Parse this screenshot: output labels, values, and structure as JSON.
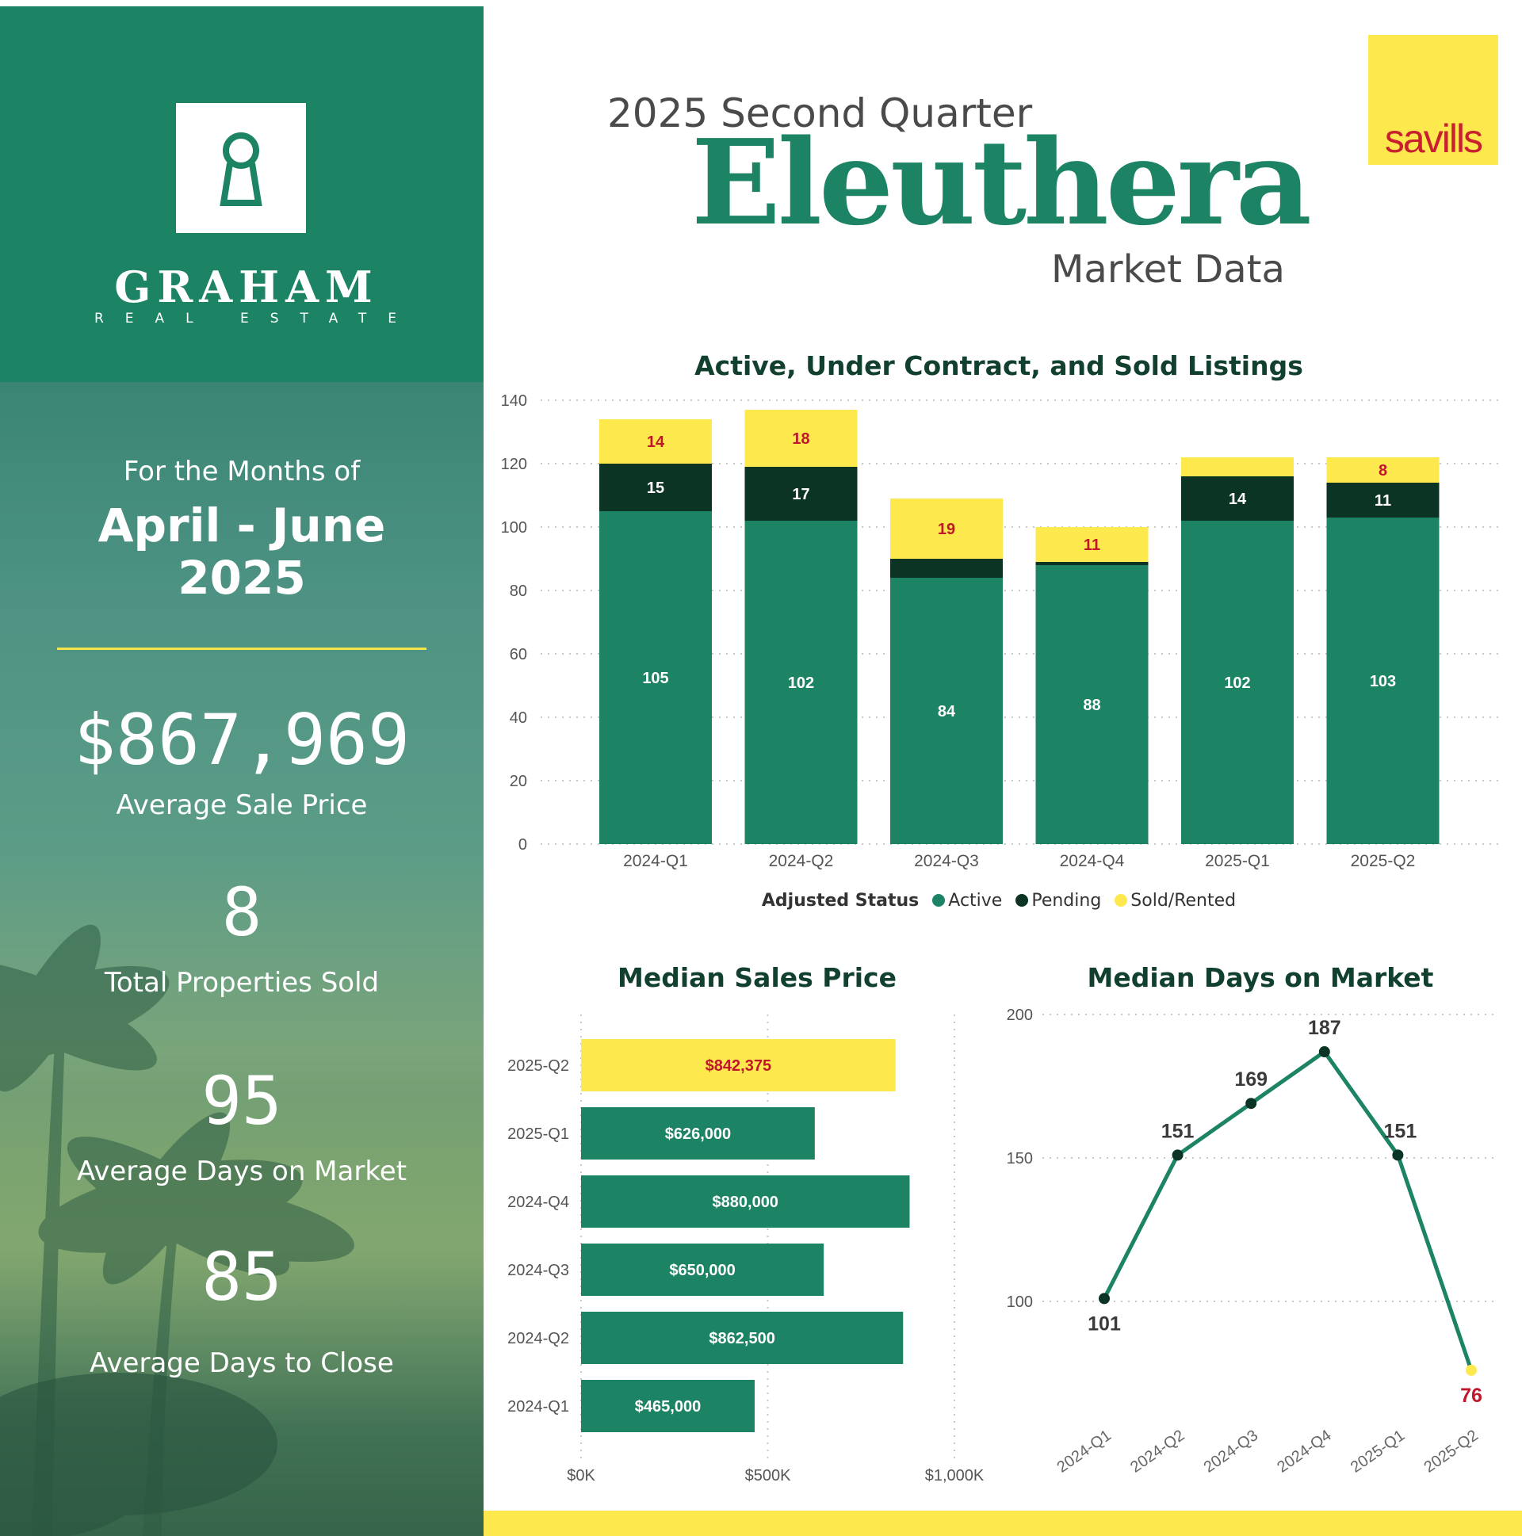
{
  "brand": {
    "name": "GRAHAM",
    "tagline": "REAL ESTATE"
  },
  "header": {
    "subtitle": "2025 Second Quarter",
    "region": "Eleuthera",
    "report_type": "Market Data",
    "partner_logo_text": "savills"
  },
  "summary": {
    "months_label": "For the Months of",
    "months_range": "April - June",
    "year": "2025",
    "avg_sale_price": "$867,969",
    "avg_sale_price_label": "Average Sale Price",
    "total_sold": "8",
    "total_sold_label": "Total Properties Sold",
    "avg_days_market": "95",
    "avg_days_market_label": "Average Days on Market",
    "avg_days_close": "85",
    "avg_days_close_label": "Average Days to Close"
  },
  "legend": {
    "title": "Adjusted Status",
    "items": [
      {
        "label": "Active",
        "color": "#1c8364"
      },
      {
        "label": "Pending",
        "color": "#0b3425"
      },
      {
        "label": "Sold/Rented",
        "color": "#fde84e"
      }
    ]
  },
  "colors": {
    "green": "#1c8364",
    "dark": "#0b3425",
    "yellow": "#fde84e",
    "red_label": "#c0172b"
  },
  "chart_data": [
    {
      "type": "bar",
      "stacked": true,
      "title": "Active, Under Contract, and Sold Listings",
      "categories": [
        "2024-Q1",
        "2024-Q2",
        "2024-Q3",
        "2024-Q4",
        "2025-Q1",
        "2025-Q2"
      ],
      "series": [
        {
          "name": "Active",
          "values": [
            105,
            102,
            84,
            88,
            102,
            103
          ],
          "labels": [
            "105",
            "102",
            "84",
            "88",
            "102",
            "103"
          ]
        },
        {
          "name": "Pending",
          "values": [
            15,
            17,
            6,
            1,
            14,
            11
          ],
          "labels": [
            "15",
            "17",
            "",
            "",
            "14",
            "11"
          ]
        },
        {
          "name": "Sold/Rented",
          "values": [
            14,
            18,
            19,
            11,
            6,
            8
          ],
          "labels": [
            "14",
            "18",
            "19",
            "11",
            "",
            "8"
          ]
        }
      ],
      "ylim": [
        0,
        140
      ],
      "yticks": [
        0,
        20,
        40,
        60,
        80,
        100,
        120,
        140
      ],
      "legend_position": "bottom",
      "grid": true
    },
    {
      "type": "bar",
      "orientation": "horizontal",
      "title": "Median Sales Price",
      "categories": [
        "2025-Q2",
        "2025-Q1",
        "2024-Q4",
        "2024-Q3",
        "2024-Q2",
        "2024-Q1"
      ],
      "values": [
        842375,
        626000,
        880000,
        650000,
        862500,
        465000
      ],
      "labels": [
        "$842,375",
        "$626,000",
        "$880,000",
        "$650,000",
        "$862,500",
        "$465,000"
      ],
      "highlight": "2025-Q2",
      "xlim": [
        0,
        1000000
      ],
      "xticks": [
        "$0K",
        "$500K",
        "$1,000K"
      ],
      "grid": true
    },
    {
      "type": "line",
      "title": "Median Days on Market",
      "x": [
        "2024-Q1",
        "2024-Q2",
        "2024-Q3",
        "2024-Q4",
        "2025-Q1",
        "2025-Q2"
      ],
      "values": [
        101,
        151,
        169,
        187,
        151,
        76
      ],
      "labels": [
        "101",
        "151",
        "169",
        "187",
        "151",
        "76"
      ],
      "highlight": "2025-Q2",
      "yticks": [
        100,
        150,
        200
      ],
      "ylim": [
        60,
        200
      ],
      "grid": true
    }
  ]
}
